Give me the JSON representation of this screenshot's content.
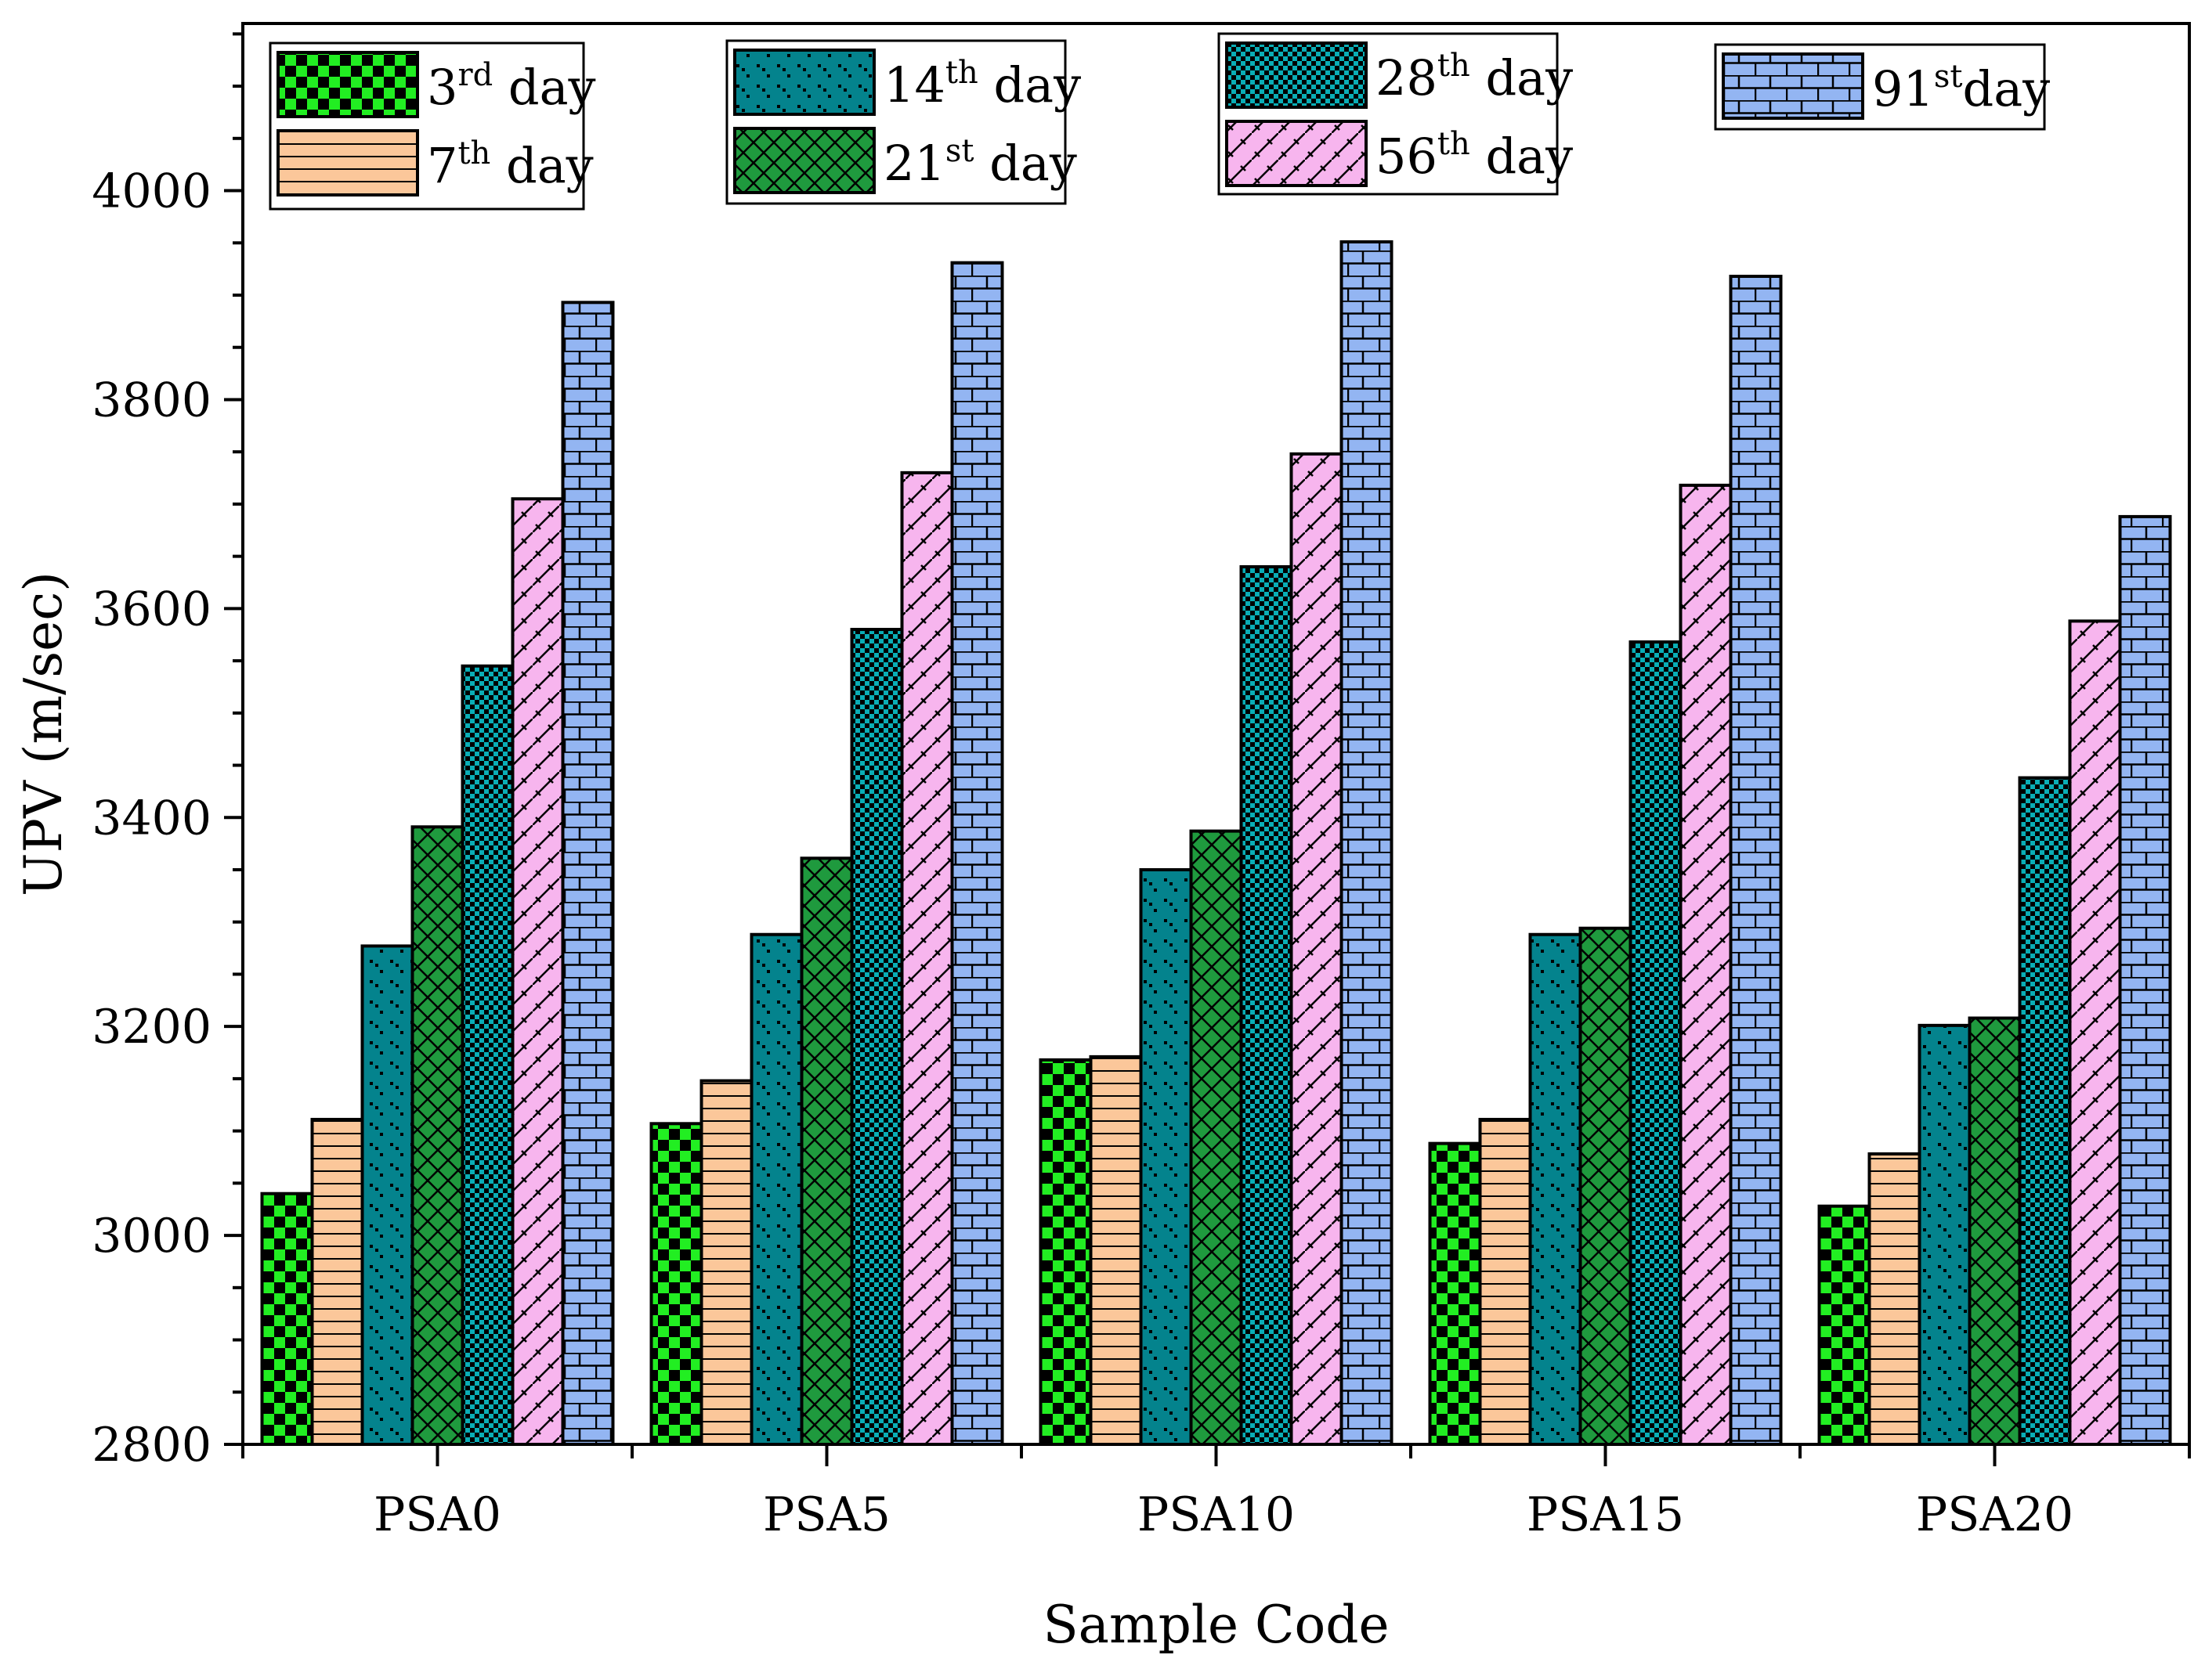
{
  "chart_data": {
    "type": "bar",
    "title": "",
    "xlabel": "Sample Code",
    "ylabel": "UPV  (m/sec)",
    "ylim": [
      2800,
      4160
    ],
    "yticks": [
      2800,
      3000,
      3200,
      3400,
      3600,
      3800,
      4000
    ],
    "grid": false,
    "legend_position": "top",
    "categories": [
      "PSA0",
      "PSA5",
      "PSA10",
      "PSA15",
      "PSA20"
    ],
    "series": [
      {
        "name": "3rd day",
        "label_num": "3",
        "label_sup": "rd",
        "label_rest": " day",
        "values": [
          3040,
          3107,
          3168,
          3088,
          3028
        ],
        "color": "#22ee22",
        "pattern": "checker"
      },
      {
        "name": "7th day",
        "label_num": "7",
        "label_sup": "th",
        "label_rest": " day",
        "values": [
          3111,
          3148,
          3171,
          3111,
          3078
        ],
        "color": "#fbc79a",
        "pattern": "hlines"
      },
      {
        "name": "14th day",
        "label_num": "14",
        "label_sup": "th",
        "label_rest": " day",
        "values": [
          3277,
          3288,
          3350,
          3288,
          3201
        ],
        "color": "#04838d",
        "pattern": "dots"
      },
      {
        "name": "21st day",
        "label_num": "21",
        "label_sup": "st",
        "label_rest": " day",
        "values": [
          3391,
          3361,
          3387,
          3294,
          3208
        ],
        "color": "#1f9a3e",
        "pattern": "crosshatch"
      },
      {
        "name": "28th day",
        "label_num": "28",
        "label_sup": "th",
        "label_rest": " day",
        "values": [
          3545,
          3580,
          3640,
          3568,
          3438
        ],
        "color": "#0aaeb6",
        "pattern": "finechecker"
      },
      {
        "name": "56th day",
        "label_num": "56",
        "label_sup": "th",
        "label_rest": " day",
        "values": [
          3705,
          3730,
          3748,
          3718,
          3588
        ],
        "color": "#f7b5ee",
        "pattern": "diagonal"
      },
      {
        "name": "91st day",
        "label_num": "91",
        "label_sup": "st",
        "label_rest": "day",
        "values": [
          3893,
          3931,
          3951,
          3918,
          3688
        ],
        "color": "#93b5f2",
        "pattern": "brick"
      }
    ]
  }
}
